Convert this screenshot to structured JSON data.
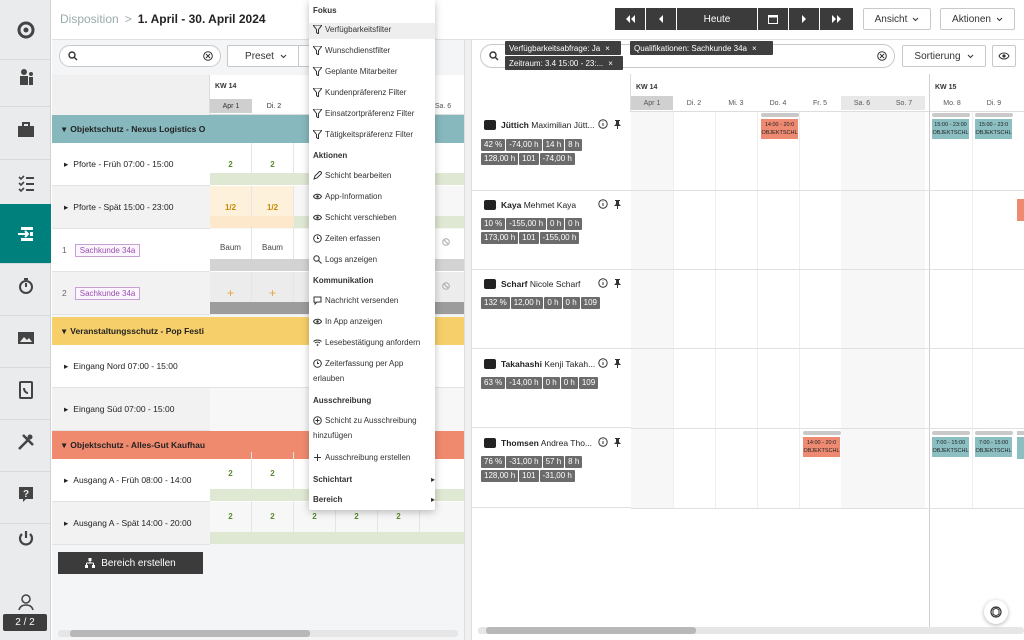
{
  "breadcrumb": {
    "section": "Disposition",
    "sep": ">",
    "range": "1. April - 30. April 2024"
  },
  "toolbar": {
    "today": "Heute",
    "view": "Ansicht",
    "actions": "Aktionen"
  },
  "left": {
    "preset": "Preset",
    "kw": "KW 14",
    "days": [
      "Apr 1",
      "Di. 2",
      "Sa. 6"
    ],
    "groups": [
      {
        "name": "Objektschutz - Nexus Logistics O",
        "color": "#7fb6bb"
      },
      {
        "name": "Veranstaltungsschutz - Pop Festi",
        "color": "#f7cf6a"
      },
      {
        "name": "Objektschutz - Alles-Gut Kaufhau",
        "color": "#f08a6e"
      }
    ],
    "rows": [
      {
        "label": "Pforte - Früh 07:00 - 15:00",
        "c1": "2",
        "c2": "2"
      },
      {
        "label": "Pforte - Spät 15:00 - 23:00",
        "c1": "1/2",
        "c2": "1/2"
      },
      {
        "index": "1",
        "tag": "Sachkunde 34a",
        "c1": "Baum",
        "c2": "Baum"
      },
      {
        "index": "2",
        "tag": "Sachkunde 34a",
        "c1": "+",
        "c2": "+"
      },
      {
        "label": "Eingang Nord 07:00 - 15:00"
      },
      {
        "label": "Eingang Süd 07:00 - 15:00"
      },
      {
        "label": "Ausgang A - Früh 08:00 - 14:00",
        "c1": "2",
        "c2": "2",
        "c3": "2",
        "c4": "2",
        "c5": "2"
      },
      {
        "label": "Ausgang A - Spät 14:00 - 20:00",
        "c1": "2",
        "c2": "2",
        "c3": "2",
        "c4": "2",
        "c5": "2"
      }
    ],
    "create_area": "Bereich erstellen"
  },
  "menu": {
    "fokus": "Fokus",
    "fokus_items": [
      "Verfügbarkeitsfilter",
      "Wunschdienstfilter",
      "Geplante Mitarbeiter",
      "Kundenpräferenz Filter",
      "Einsatzortpräferenz Filter",
      "Tätigkeitspräferenz Filter"
    ],
    "aktionen": "Aktionen",
    "aktionen_items": [
      "Schicht bearbeiten",
      "App-Information",
      "Schicht verschieben",
      "Zeiten erfassen",
      "Logs anzeigen"
    ],
    "kommunikation": "Kommunikation",
    "komm_items": [
      "Nachricht versenden",
      "In App anzeigen",
      "Lesebestätigung anfordern",
      "Zeiterfassung per App",
      "erlauben"
    ],
    "ausschreibung": "Ausschreibung",
    "aus_items": [
      "Schicht zu Ausschreibung",
      "hinzufügen",
      "Ausschreibung erstellen"
    ],
    "schichtart": "Schichtart",
    "bereich": "Bereich"
  },
  "right": {
    "chips": [
      "Verfügbarkeitsabfrage: Ja",
      "Qualifikationen: Sachkunde 34a",
      "Zeitraum: 3.4 15:00 - 23:..."
    ],
    "sort": "Sortierung",
    "kw14": "KW 14",
    "kw15": "KW 15",
    "days": [
      "Apr 1",
      "Di. 2",
      "Mi. 3",
      "Do. 4",
      "Fr. 5",
      "Sa. 6",
      "So. 7",
      "Mo. 8",
      "Di. 9"
    ],
    "employees": [
      {
        "last": "Jüttich",
        "first": "Maximilian Jütt...",
        "stats": [
          "42 %",
          "-74,00 h",
          "14 h",
          "8 h",
          "128,00 h",
          "101",
          "-74,00 h"
        ]
      },
      {
        "last": "Kaya",
        "first": "Mehmet Kaya",
        "stats": [
          "10 %",
          "-155,00 h",
          "0 h",
          "0 h",
          "173,00 h",
          "101",
          "-155,00 h"
        ]
      },
      {
        "last": "Scharf",
        "first": "Nicole Scharf",
        "stats": [
          "132 %",
          "12,00 h",
          "0 h",
          "0 h",
          "109"
        ]
      },
      {
        "last": "Takahashi",
        "first": "Kenji Takah...",
        "stats": [
          "63 %",
          "-14,00 h",
          "0 h",
          "0 h",
          "109"
        ]
      },
      {
        "last": "Thomsen",
        "first": "Andrea Tho...",
        "stats": [
          "76 %",
          "-31,00 h",
          "57 h",
          "8 h",
          "128,00 h",
          "101",
          "-31,00 h"
        ]
      }
    ],
    "shifts": {
      "a": {
        "time": "14:00 - 20:0",
        "obj": "OBJEKTSCHL"
      },
      "b": {
        "time": "15:00 - 23:00",
        "obj": "OBJEKTSCHL"
      },
      "c": {
        "time": "15:00 - 23:0",
        "obj": "OBJEKTSCHL"
      },
      "d": {
        "time": "14:00 - 20:0",
        "obj": "OBJEKTSCHL"
      },
      "e": {
        "time": "7:00 - 15:00",
        "obj": "OBJEKTSCHL"
      },
      "f": {
        "time": "7:00 - 15:00",
        "obj": "OBJEKTSCHL"
      }
    }
  },
  "footer": {
    "pager": "2 / 2"
  }
}
